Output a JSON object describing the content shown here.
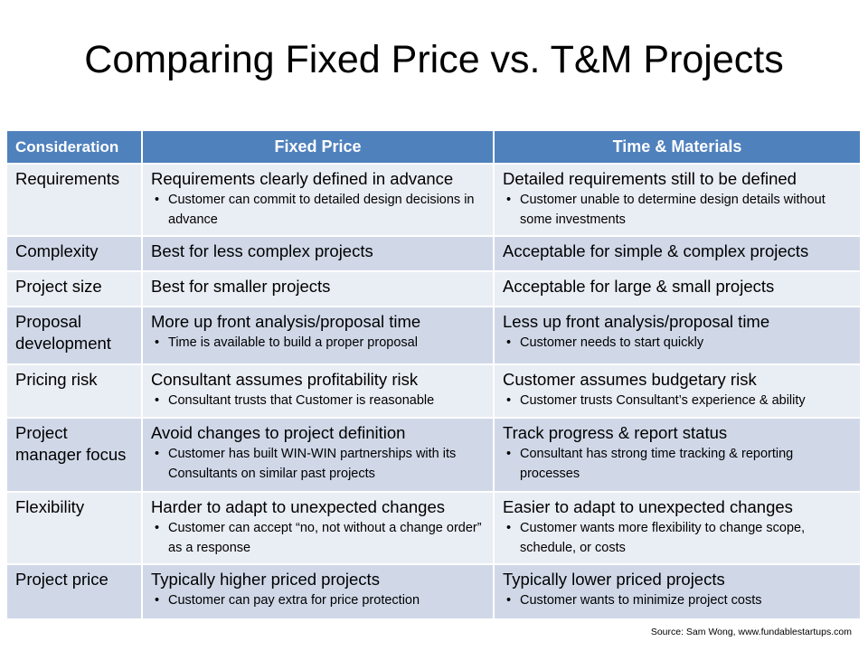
{
  "title": "Comparing Fixed Price vs. T&M Projects",
  "colors": {
    "header": "#4f81bd",
    "row_light": "#e9edf4",
    "row_dark": "#d0d8e8"
  },
  "table": {
    "headers": [
      "Consideration",
      "Fixed Price",
      "Time & Materials"
    ],
    "rows": [
      {
        "consideration": "Requirements",
        "fixed": "Requirements clearly defined in advance",
        "fixed_bullet": "Customer can commit to detailed design decisions in advance",
        "tm": "Detailed requirements still to be defined",
        "tm_bullet": "Customer unable to determine design details without some investments"
      },
      {
        "consideration": "Complexity",
        "fixed": "Best for less complex projects",
        "tm": "Acceptable for simple & complex projects"
      },
      {
        "consideration": "Project size",
        "fixed": "Best for smaller projects",
        "tm": "Acceptable for large & small projects"
      },
      {
        "consideration": "Proposal development",
        "fixed": "More up front analysis/proposal time",
        "fixed_bullet": "Time is available to build a proper proposal",
        "tm": "Less up front analysis/proposal time",
        "tm_bullet": "Customer needs to start quickly"
      },
      {
        "consideration": "Pricing risk",
        "fixed": "Consultant assumes profitability risk",
        "fixed_bullet": "Consultant trusts that Customer is reasonable",
        "tm": "Customer assumes budgetary risk",
        "tm_bullet": "Customer trusts Consultant’s experience & ability"
      },
      {
        "consideration": "Project manager focus",
        "fixed": "Avoid changes to project definition",
        "fixed_bullet": "Customer has built WIN-WIN partnerships with its Consultants on similar past projects",
        "tm": "Track progress & report status",
        "tm_bullet": "Consultant has strong time tracking & reporting processes"
      },
      {
        "consideration": "Flexibility",
        "fixed": "Harder to adapt to unexpected changes",
        "fixed_bullet": "Customer can accept “no, not without a change order” as a response",
        "tm": "Easier to adapt to unexpected changes",
        "tm_bullet": "Customer wants more flexibility to change scope, schedule, or costs"
      },
      {
        "consideration": "Project price",
        "fixed": "Typically higher priced projects",
        "fixed_bullet": "Customer can pay extra for price protection",
        "tm": "Typically lower priced projects",
        "tm_bullet": "Customer wants to minimize project costs"
      }
    ]
  },
  "source": "Source: Sam Wong, www.fundablestartups.com"
}
